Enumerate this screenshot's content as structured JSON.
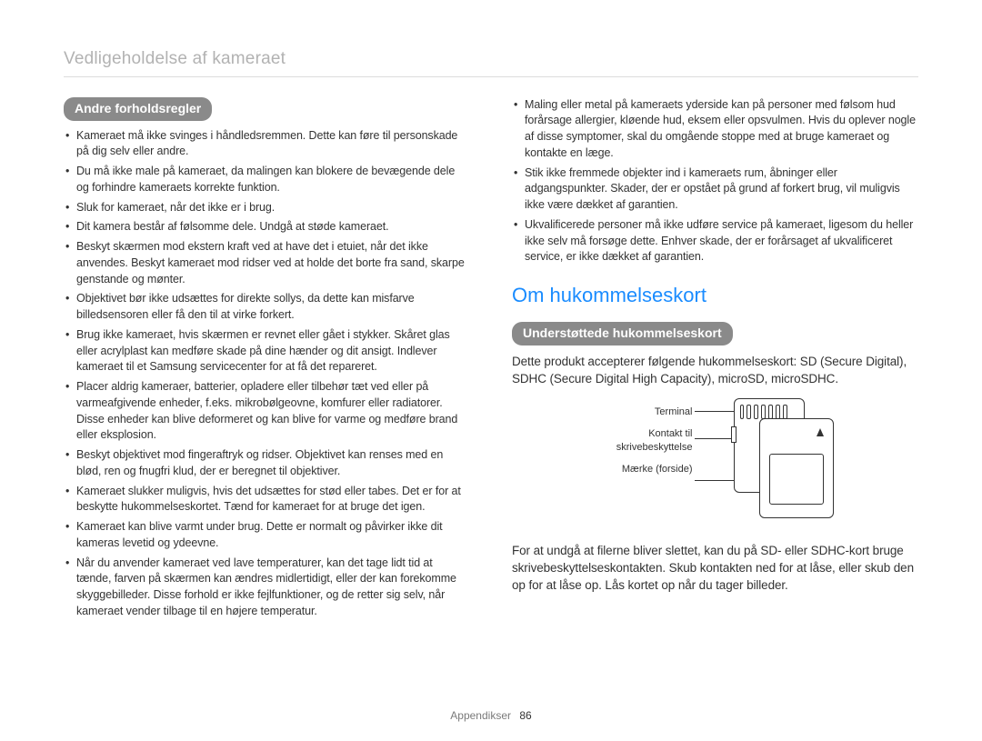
{
  "header": {
    "title": "Vedligeholdelse af kameraet"
  },
  "left": {
    "pill": "Andre forholdsregler",
    "items": [
      "Kameraet må ikke svinges i håndledsremmen. Dette kan føre til personskade på dig selv eller andre.",
      "Du må ikke male på kameraet, da malingen kan blokere de bevægende dele og forhindre kameraets korrekte funktion.",
      "Sluk for kameraet, når det ikke er i brug.",
      "Dit kamera består af følsomme dele. Undgå at støde kameraet.",
      "Beskyt skærmen mod ekstern kraft ved at have det i etuiet, når det ikke anvendes. Beskyt kameraet mod ridser ved at holde det borte fra sand, skarpe genstande og mønter.",
      "Objektivet bør ikke udsættes for direkte sollys, da dette kan misfarve billedsensoren eller få den til at virke forkert.",
      "Brug ikke kameraet, hvis skærmen er revnet eller gået i stykker. Skåret glas eller acrylplast kan medføre skade på dine hænder og dit ansigt. Indlever kameraet til et Samsung servicecenter for at få det repareret.",
      "Placer aldrig kameraer, batterier, opladere eller tilbehør tæt ved eller på varmeafgivende enheder, f.eks. mikrobølgeovne, komfurer eller radiatorer. Disse enheder kan blive deformeret og kan blive for varme og medføre brand eller eksplosion.",
      "Beskyt objektivet mod fingeraftryk og ridser. Objektivet kan renses med en blød, ren og fnugfri klud, der er beregnet til objektiver.",
      "Kameraet slukker muligvis, hvis det udsættes for stød eller tabes. Det er for at beskytte hukommelseskortet. Tænd for kameraet for at bruge det igen.",
      "Kameraet kan blive varmt under brug. Dette er normalt og påvirker ikke dit kameras levetid og ydeevne.",
      "Når du anvender kameraet ved lave temperaturer, kan det tage lidt tid at tænde, farven på skærmen kan ændres midlertidigt, eller der kan forekomme skyggebilleder. Disse forhold er ikke fejlfunktioner, og de retter sig selv, når kameraet vender tilbage til en højere temperatur."
    ]
  },
  "right": {
    "top_items": [
      "Maling eller metal på kameraets yderside kan på personer med følsom hud forårsage allergier, kløende hud, eksem eller opsvulmen. Hvis du oplever nogle af disse symptomer, skal du omgående stoppe med at bruge kameraet og kontakte en læge.",
      "Stik ikke fremmede objekter ind i kameraets rum, åbninger eller adgangspunkter. Skader, der er opstået på grund af forkert brug, vil muligvis ikke være dækket af garantien.",
      "Ukvalificerede personer må ikke udføre service på kameraet, ligesom du heller ikke selv må forsøge dette. Enhver skade, der er forårsaget af ukvalificeret service, er ikke dækket af garantien."
    ],
    "section_title": "Om hukommelseskort",
    "pill": "Understøttede hukommelseskort",
    "intro": "Dette produkt accepterer følgende hukommelseskort: SD (Secure Digital), SDHC (Secure Digital High Capacity), microSD, microSDHC.",
    "diagram": {
      "label_terminal": "Terminal",
      "label_lock": "Kontakt til skrivebeskyttelse",
      "label_front": "Mærke (forside)"
    },
    "outro": "For at undgå at filerne bliver slettet, kan du på SD- eller SDHC-kort bruge skrivebeskyttelseskontakten. Skub kontakten ned for at låse, eller skub den op for at låse op. Lås kortet op når du tager billeder."
  },
  "footer": {
    "section": "Appendikser",
    "page": "86"
  },
  "colors": {
    "header_gray": "#b2b2b2",
    "pill_bg": "#8a8a8a",
    "pill_text": "#ffffff",
    "body_text": "#333333",
    "accent_blue": "#1a8cff",
    "rule": "#dcdcdc"
  }
}
